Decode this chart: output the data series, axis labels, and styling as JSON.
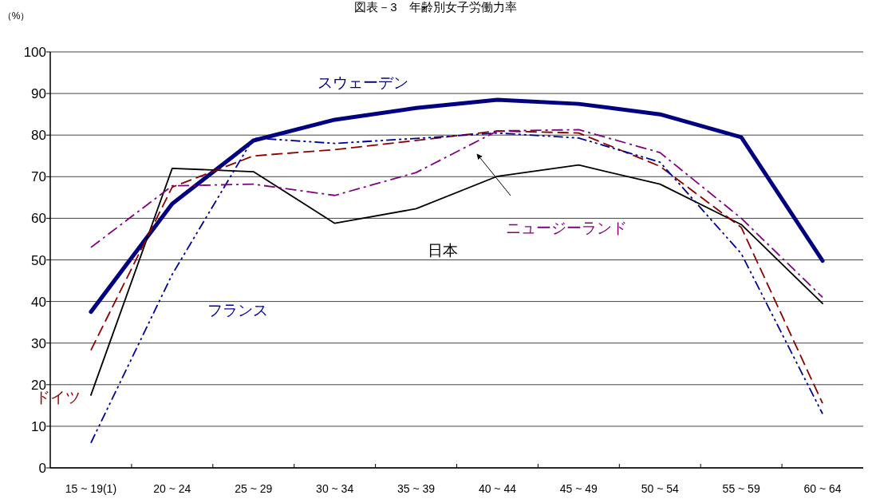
{
  "chart_data": {
    "type": "line",
    "title": "図表－3　年齢別女子労働力率",
    "ylabel": "（%）",
    "categories": [
      "15 ~ 19(1)",
      "20 ~ 24",
      "25 ~ 29",
      "30 ~ 34",
      "35 ~ 39",
      "40 ~ 44",
      "45 ~ 49",
      "50 ~ 54",
      "55 ~ 59",
      "60 ~ 64"
    ],
    "series": [
      {
        "name": "スウェーデン",
        "color": "#000080",
        "line_style": "solid",
        "values": [
          37.5,
          63.5,
          78.7,
          83.7,
          86.5,
          88.5,
          87.5,
          85,
          79.5,
          49.8
        ]
      },
      {
        "name": "日本",
        "color": "#000000",
        "line_style": "solid",
        "values": [
          17.5,
          72,
          71.2,
          58.8,
          62.3,
          70.1,
          72.8,
          68.2,
          58.5,
          39.5
        ]
      },
      {
        "name": "ドイツ",
        "color": "#8b0000",
        "line_style": "dashed",
        "values": [
          28.3,
          67.5,
          75,
          76.5,
          78.7,
          81,
          80.5,
          72.5,
          57.8,
          15.5
        ]
      },
      {
        "name": "フランス",
        "color": "#000099",
        "line_style": "dashdotdot",
        "values": [
          6,
          46.5,
          79.3,
          78,
          79.2,
          80.5,
          79.3,
          73.5,
          51.5,
          13
        ]
      },
      {
        "name": "ニュージーランド",
        "color": "#800080",
        "line_style": "dashdot",
        "values": [
          53,
          67.8,
          68.2,
          65.5,
          71,
          81,
          81.3,
          75.8,
          60,
          41
        ]
      }
    ],
    "ylim": [
      0,
      100
    ],
    "yticks": [
      0,
      10,
      20,
      30,
      40,
      50,
      60,
      70,
      80,
      90,
      100
    ],
    "grid": "y",
    "marker": "none"
  }
}
